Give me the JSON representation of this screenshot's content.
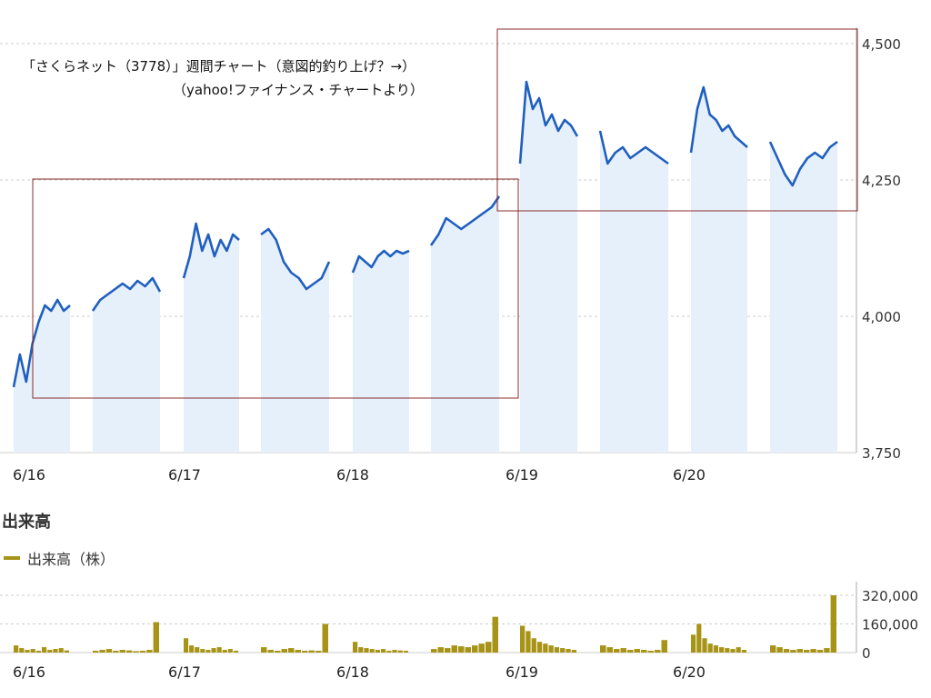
{
  "annotation": {
    "line1": "「さくらネット（3778）」週間チャート（意図的釣り上げ？→）",
    "line2": "（yahoo!ファイナンス・チャートより）"
  },
  "volume_section_title": "出来高",
  "volume_legend_label": "出来高（株）",
  "colors": {
    "price_line": "#1f5fbf",
    "price_fill": "#e6f0fa",
    "volume_bar": "#a79416",
    "highlight_box": "#8b2c2c",
    "grid": "#cccccc"
  },
  "chart_data": [
    {
      "type": "line",
      "title": "",
      "ylabel": "",
      "ylim": [
        3750,
        4500
      ],
      "yticks": [
        "4,500",
        "4,250",
        "4,000",
        "3,750"
      ],
      "ytick_values": [
        4500,
        4250,
        4000,
        3750
      ],
      "x_tick_labels": [
        "6/16",
        "6/17",
        "6/18",
        "6/19",
        "6/20"
      ],
      "sessions": [
        {
          "day": "6/16",
          "part": "am",
          "values": [
            3870,
            3930,
            3880,
            3950,
            3990,
            4020,
            4010,
            4030,
            4010,
            4020
          ]
        },
        {
          "day": "6/16",
          "part": "pm",
          "values": [
            4010,
            4030,
            4040,
            4050,
            4060,
            4050,
            4065,
            4055,
            4070,
            4045
          ]
        },
        {
          "day": "6/17",
          "part": "am",
          "values": [
            4070,
            4110,
            4170,
            4120,
            4150,
            4110,
            4140,
            4120,
            4150,
            4140
          ]
        },
        {
          "day": "6/17",
          "part": "pm",
          "values": [
            4150,
            4160,
            4140,
            4100,
            4080,
            4070,
            4050,
            4060,
            4070,
            4100
          ]
        },
        {
          "day": "6/18",
          "part": "am",
          "values": [
            4080,
            4110,
            4100,
            4090,
            4110,
            4120,
            4110,
            4120,
            4115,
            4120
          ]
        },
        {
          "day": "6/18",
          "part": "pm",
          "values": [
            4130,
            4150,
            4180,
            4170,
            4160,
            4170,
            4180,
            4190,
            4200,
            4220
          ]
        },
        {
          "day": "6/19",
          "part": "am",
          "values": [
            4280,
            4430,
            4380,
            4400,
            4350,
            4370,
            4340,
            4360,
            4350,
            4330
          ]
        },
        {
          "day": "6/19",
          "part": "pm",
          "values": [
            4340,
            4280,
            4300,
            4310,
            4290,
            4300,
            4310,
            4300,
            4290,
            4280
          ]
        },
        {
          "day": "6/20",
          "part": "am",
          "values": [
            4300,
            4380,
            4420,
            4370,
            4360,
            4340,
            4350,
            4330,
            4320,
            4310
          ]
        },
        {
          "day": "6/20",
          "part": "pm",
          "values": [
            4320,
            4290,
            4260,
            4240,
            4270,
            4290,
            4300,
            4290,
            4310,
            4320
          ]
        }
      ]
    },
    {
      "type": "bar",
      "title": "出来高",
      "series_name": "出来高（株）",
      "ylim": [
        0,
        320000
      ],
      "yticks": [
        "320,000",
        "160,000",
        "0"
      ],
      "ytick_values": [
        320000,
        160000,
        0
      ],
      "x_tick_labels": [
        "6/16",
        "6/17",
        "6/18",
        "6/19",
        "6/20"
      ],
      "sessions": [
        {
          "day": "6/16",
          "part": "am",
          "values": [
            40000,
            25000,
            15000,
            20000,
            10000,
            30000,
            15000,
            20000,
            25000,
            12000
          ]
        },
        {
          "day": "6/16",
          "part": "pm",
          "values": [
            10000,
            15000,
            20000,
            10000,
            15000,
            12000,
            8000,
            10000,
            15000,
            170000
          ]
        },
        {
          "day": "6/17",
          "part": "am",
          "values": [
            80000,
            40000,
            30000,
            20000,
            15000,
            25000,
            30000,
            15000,
            20000,
            10000
          ]
        },
        {
          "day": "6/17",
          "part": "pm",
          "values": [
            30000,
            15000,
            10000,
            20000,
            25000,
            15000,
            10000,
            12000,
            10000,
            160000
          ]
        },
        {
          "day": "6/18",
          "part": "am",
          "values": [
            60000,
            30000,
            25000,
            20000,
            15000,
            20000,
            10000,
            15000,
            12000,
            10000
          ]
        },
        {
          "day": "6/18",
          "part": "pm",
          "values": [
            20000,
            30000,
            25000,
            40000,
            35000,
            30000,
            40000,
            50000,
            60000,
            200000
          ]
        },
        {
          "day": "6/19",
          "part": "am",
          "values": [
            150000,
            120000,
            80000,
            60000,
            50000,
            40000,
            30000,
            25000,
            20000,
            15000
          ]
        },
        {
          "day": "6/19",
          "part": "pm",
          "values": [
            40000,
            30000,
            20000,
            25000,
            15000,
            20000,
            15000,
            10000,
            15000,
            70000
          ]
        },
        {
          "day": "6/20",
          "part": "am",
          "values": [
            100000,
            160000,
            80000,
            50000,
            40000,
            30000,
            25000,
            20000,
            30000,
            15000
          ]
        },
        {
          "day": "6/20",
          "part": "pm",
          "values": [
            40000,
            30000,
            20000,
            15000,
            20000,
            15000,
            20000,
            15000,
            25000,
            320000
          ]
        }
      ]
    }
  ]
}
